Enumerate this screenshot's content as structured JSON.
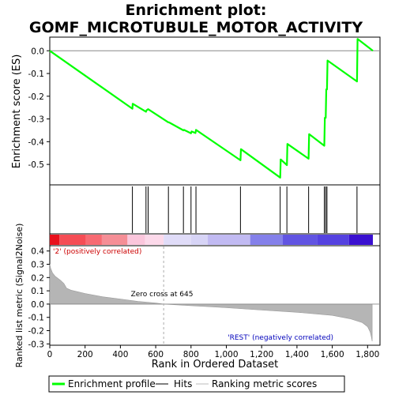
{
  "chart_data": {
    "type": "line",
    "title_line1": "Enrichment plot:",
    "title_line2": "GOMF_MICROTUBULE_MOTOR_ACTIVITY",
    "xlabel": "Rank in Ordered Dataset",
    "ylabel_top": "Enrichment score (ES)",
    "ylabel_bottom": "Ranked list metric (Signal2Noise)",
    "xlim": [
      0,
      1830
    ],
    "xticks": [
      "0",
      "200",
      "400",
      "600",
      "800",
      "1,000",
      "1,200",
      "1,400",
      "1,600",
      "1,800"
    ],
    "x_tick_values": [
      0,
      200,
      400,
      600,
      800,
      1000,
      1200,
      1400,
      1600,
      1800
    ],
    "es_ylim": [
      -0.59,
      0.06
    ],
    "es_yticks": [
      "0.0",
      "-0.1",
      "-0.2",
      "-0.3",
      "-0.4",
      "-0.5"
    ],
    "es_ytick_values": [
      0.0,
      -0.1,
      -0.2,
      -0.3,
      -0.4,
      -0.5
    ],
    "metric_ylim": [
      -0.31,
      0.44
    ],
    "metric_yticks": [
      "0.4",
      "0.3",
      "0.2",
      "0.1",
      "0.0",
      "-0.1",
      "-0.2",
      "-0.3"
    ],
    "metric_ytick_values": [
      0.4,
      0.3,
      0.2,
      0.1,
      0.0,
      -0.1,
      -0.2,
      -0.3
    ],
    "enrichment_profile": [
      [
        0,
        0.0
      ],
      [
        468,
        -0.255
      ],
      [
        470,
        -0.233
      ],
      [
        545,
        -0.268
      ],
      [
        548,
        -0.262
      ],
      [
        557,
        -0.257
      ],
      [
        672,
        -0.315
      ],
      [
        675,
        -0.315
      ],
      [
        757,
        -0.35
      ],
      [
        760,
        -0.348
      ],
      [
        800,
        -0.363
      ],
      [
        803,
        -0.355
      ],
      [
        825,
        -0.362
      ],
      [
        828,
        -0.348
      ],
      [
        1080,
        -0.482
      ],
      [
        1083,
        -0.433
      ],
      [
        1305,
        -0.558
      ],
      [
        1308,
        -0.478
      ],
      [
        1343,
        -0.503
      ],
      [
        1346,
        -0.41
      ],
      [
        1466,
        -0.475
      ],
      [
        1469,
        -0.367
      ],
      [
        1555,
        -0.418
      ],
      [
        1558,
        -0.295
      ],
      [
        1563,
        -0.295
      ],
      [
        1566,
        -0.17
      ],
      [
        1570,
        -0.17
      ],
      [
        1573,
        -0.043
      ],
      [
        1740,
        -0.135
      ],
      [
        1743,
        0.052
      ],
      [
        1830,
        0.0
      ]
    ],
    "hits": [
      468,
      545,
      557,
      672,
      757,
      800,
      828,
      1080,
      1305,
      1343,
      1466,
      1555,
      1563,
      1570,
      1740
    ],
    "zero_cross": 645,
    "zero_cross_label": "Zero cross at 645",
    "pos_label": "'2' (positively correlated)",
    "neg_label": "'REST' (negatively correlated)",
    "metric_curve": [
      [
        0,
        0.3
      ],
      [
        5,
        0.27
      ],
      [
        15,
        0.235
      ],
      [
        30,
        0.21
      ],
      [
        60,
        0.18
      ],
      [
        80,
        0.155
      ],
      [
        95,
        0.12
      ],
      [
        120,
        0.105
      ],
      [
        200,
        0.08
      ],
      [
        300,
        0.055
      ],
      [
        400,
        0.038
      ],
      [
        500,
        0.02
      ],
      [
        600,
        0.008
      ],
      [
        645,
        0.0
      ],
      [
        800,
        -0.012
      ],
      [
        1000,
        -0.027
      ],
      [
        1200,
        -0.045
      ],
      [
        1400,
        -0.062
      ],
      [
        1600,
        -0.085
      ],
      [
        1700,
        -0.11
      ],
      [
        1770,
        -0.14
      ],
      [
        1800,
        -0.17
      ],
      [
        1815,
        -0.21
      ],
      [
        1822,
        -0.25
      ],
      [
        1826,
        -0.28
      ]
    ],
    "heat_segments": [
      {
        "from": 0,
        "to": 55,
        "color": "#e8101c"
      },
      {
        "from": 55,
        "to": 205,
        "color": "#f54d55"
      },
      {
        "from": 205,
        "to": 295,
        "color": "#f76a72"
      },
      {
        "from": 295,
        "to": 440,
        "color": "#f58e96"
      },
      {
        "from": 440,
        "to": 540,
        "color": "#fbc6dc"
      },
      {
        "from": 540,
        "to": 645,
        "color": "#fcd9ea"
      },
      {
        "from": 645,
        "to": 800,
        "color": "#e0dcf8"
      },
      {
        "from": 800,
        "to": 895,
        "color": "#d7d4f6"
      },
      {
        "from": 895,
        "to": 1135,
        "color": "#c1baf2"
      },
      {
        "from": 1135,
        "to": 1320,
        "color": "#8480ea"
      },
      {
        "from": 1320,
        "to": 1515,
        "color": "#6154e2"
      },
      {
        "from": 1515,
        "to": 1695,
        "color": "#5542e0"
      },
      {
        "from": 1695,
        "to": 1830,
        "color": "#3a10d0"
      }
    ],
    "colors": {
      "profile": "#00ff00",
      "hits": "#000000",
      "metric_fill": "#b5b5b5",
      "zero_line": "#aaaaaa",
      "pos_text": "#cc0000",
      "neg_text": "#0000bb"
    },
    "legend": {
      "profile": "Enrichment profile",
      "hits": "Hits",
      "metric": "Ranking metric scores"
    }
  }
}
